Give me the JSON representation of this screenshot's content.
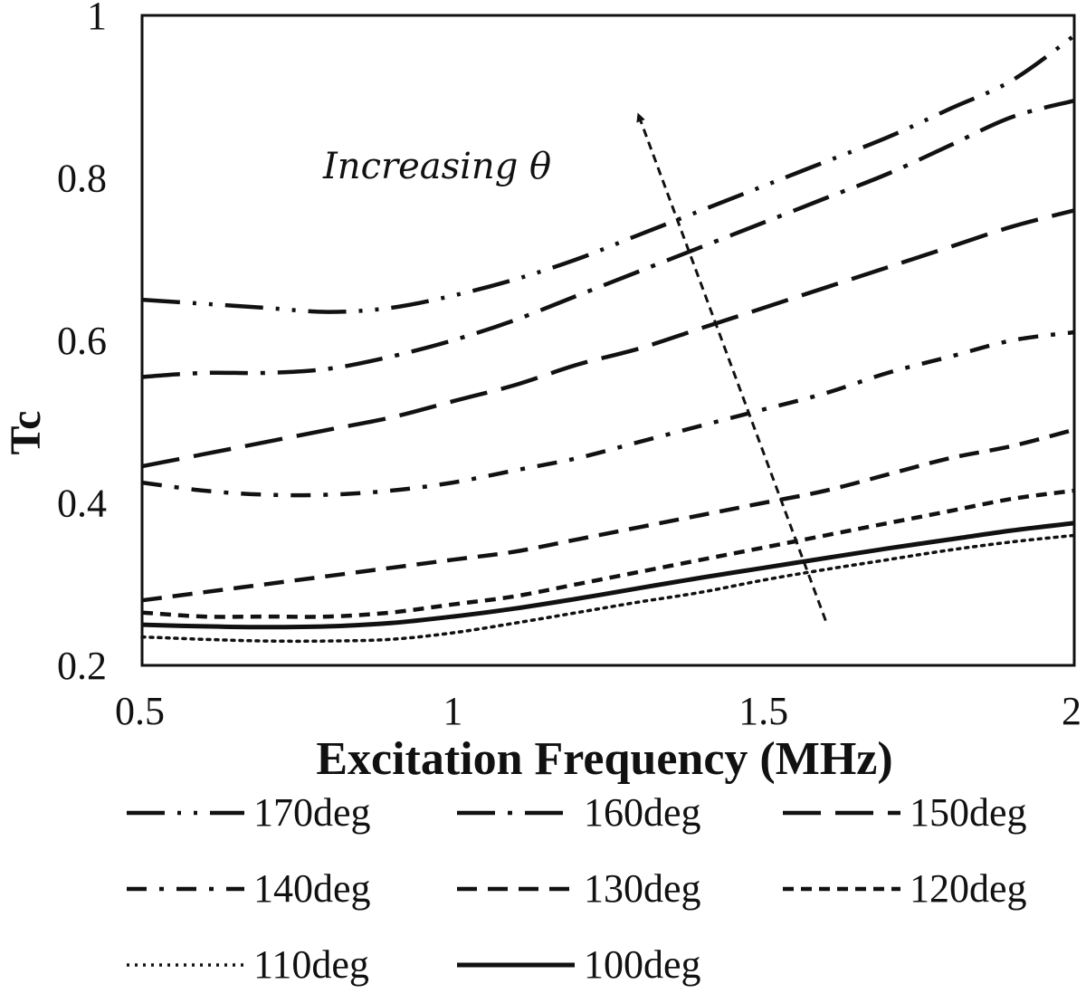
{
  "chart_data": {
    "type": "line",
    "title": "",
    "xlabel": "Excitation Frequency (MHz)",
    "ylabel": "Tc",
    "xlim": [
      0.5,
      2
    ],
    "ylim": [
      0.2,
      1
    ],
    "xticks": [
      0.5,
      1,
      1.5,
      2
    ],
    "xtick_labels": [
      "0.5",
      "1",
      "1.5",
      "2"
    ],
    "yticks": [
      0.2,
      0.4,
      0.6,
      0.8,
      1
    ],
    "ytick_labels": [
      "0.2",
      "0.4",
      "0.6",
      "0.8",
      "1"
    ],
    "grid": false,
    "legend_position": "bottom",
    "annotation": {
      "text": "Increasing θ",
      "arrow_from": [
        1.6,
        0.255
      ],
      "arrow_to": [
        1.3,
        0.875
      ]
    },
    "x": [
      0.5,
      0.6,
      0.7,
      0.8,
      0.9,
      1.0,
      1.1,
      1.2,
      1.3,
      1.4,
      1.5,
      1.6,
      1.7,
      1.8,
      1.9,
      2.0
    ],
    "series": [
      {
        "name": "170deg",
        "style": "long-dash-dot-dot",
        "values": [
          0.65,
          0.645,
          0.64,
          0.635,
          0.64,
          0.655,
          0.675,
          0.7,
          0.73,
          0.76,
          0.79,
          0.82,
          0.85,
          0.885,
          0.92,
          0.975
        ]
      },
      {
        "name": "160deg",
        "style": "long-dash-dot",
        "values": [
          0.555,
          0.56,
          0.56,
          0.565,
          0.58,
          0.6,
          0.625,
          0.655,
          0.685,
          0.715,
          0.745,
          0.775,
          0.805,
          0.84,
          0.875,
          0.895
        ]
      },
      {
        "name": "150deg",
        "style": "long-dash",
        "values": [
          0.445,
          0.46,
          0.475,
          0.49,
          0.505,
          0.525,
          0.545,
          0.57,
          0.59,
          0.615,
          0.64,
          0.665,
          0.69,
          0.715,
          0.74,
          0.76
        ]
      },
      {
        "name": "140deg",
        "style": "dash-dot",
        "values": [
          0.425,
          0.415,
          0.41,
          0.41,
          0.415,
          0.425,
          0.44,
          0.455,
          0.475,
          0.495,
          0.515,
          0.535,
          0.56,
          0.58,
          0.6,
          0.61
        ]
      },
      {
        "name": "130deg",
        "style": "dash",
        "values": [
          0.28,
          0.29,
          0.3,
          0.31,
          0.32,
          0.33,
          0.34,
          0.355,
          0.37,
          0.385,
          0.4,
          0.415,
          0.435,
          0.455,
          0.47,
          0.49
        ]
      },
      {
        "name": "120deg",
        "style": "short-dash",
        "values": [
          0.265,
          0.26,
          0.26,
          0.26,
          0.265,
          0.275,
          0.285,
          0.3,
          0.315,
          0.33,
          0.345,
          0.36,
          0.375,
          0.39,
          0.405,
          0.415
        ]
      },
      {
        "name": "110deg",
        "style": "dot",
        "values": [
          0.235,
          0.232,
          0.23,
          0.23,
          0.232,
          0.24,
          0.252,
          0.265,
          0.278,
          0.29,
          0.305,
          0.318,
          0.33,
          0.342,
          0.352,
          0.36
        ]
      },
      {
        "name": "100deg",
        "style": "solid",
        "values": [
          0.25,
          0.248,
          0.247,
          0.248,
          0.252,
          0.26,
          0.27,
          0.282,
          0.295,
          0.308,
          0.32,
          0.332,
          0.344,
          0.355,
          0.366,
          0.375
        ]
      }
    ]
  }
}
